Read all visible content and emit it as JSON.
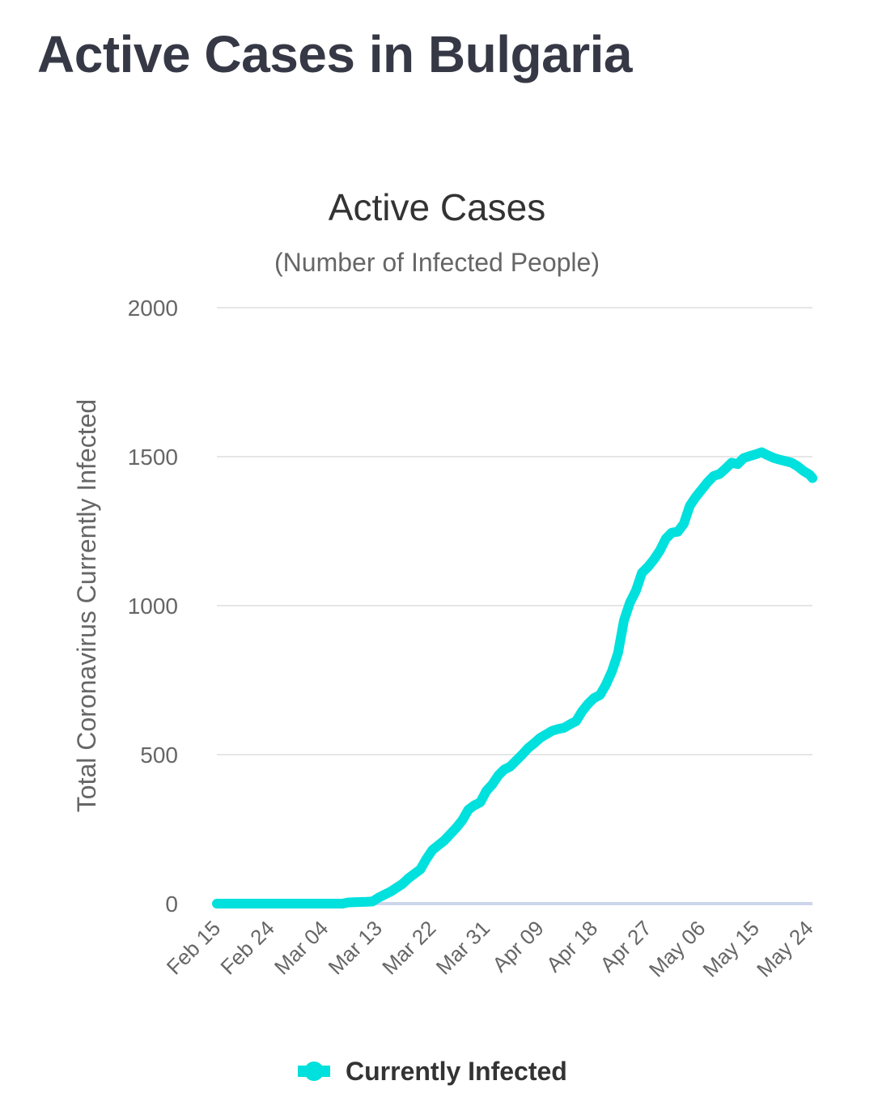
{
  "page": {
    "title": "Active Cases in Bulgaria"
  },
  "colors": {
    "series": "#00e0dd",
    "grid": "#e6e6e6",
    "baseline": "#ccd6eb"
  },
  "chart_data": {
    "type": "line",
    "title": "Active Cases",
    "subtitle": "(Number of Infected People)",
    "xlabel": "",
    "ylabel": "Total Coronavirus Currently Infected",
    "ylim": [
      0,
      2000
    ],
    "yticks": [
      0,
      500,
      1000,
      1500,
      2000
    ],
    "xlim": [
      "Feb 15",
      "May 25"
    ],
    "xtick_labels": [
      "Feb 15",
      "Feb 24",
      "Mar 04",
      "Mar 13",
      "Mar 22",
      "Mar 31",
      "Apr 09",
      "Apr 18",
      "Apr 27",
      "May 06",
      "May 15",
      "May 24"
    ],
    "grid": true,
    "legend": {
      "position": "bottom-center",
      "entries": [
        "Currently Infected"
      ]
    },
    "series": [
      {
        "name": "Currently Infected",
        "points": [
          {
            "day": 0,
            "date": "Feb 15",
            "value": 0
          },
          {
            "day": 21,
            "date": "Mar 07",
            "value": 0
          },
          {
            "day": 22,
            "date": "Mar 08",
            "value": 4
          },
          {
            "day": 25,
            "date": "Mar 11",
            "value": 6
          },
          {
            "day": 26,
            "date": "Mar 12",
            "value": 7
          },
          {
            "day": 27,
            "date": "Mar 13",
            "value": 20
          },
          {
            "day": 29,
            "date": "Mar 15",
            "value": 40
          },
          {
            "day": 31,
            "date": "Mar 17",
            "value": 66
          },
          {
            "day": 32,
            "date": "Mar 18",
            "value": 85
          },
          {
            "day": 34,
            "date": "Mar 20",
            "value": 115
          },
          {
            "day": 35,
            "date": "Mar 21",
            "value": 150
          },
          {
            "day": 36,
            "date": "Mar 22",
            "value": 180
          },
          {
            "day": 38,
            "date": "Mar 24",
            "value": 212
          },
          {
            "day": 40,
            "date": "Mar 26",
            "value": 255
          },
          {
            "day": 41,
            "date": "Mar 27",
            "value": 280
          },
          {
            "day": 42,
            "date": "Mar 28",
            "value": 315
          },
          {
            "day": 43,
            "date": "Mar 29",
            "value": 330
          },
          {
            "day": 44,
            "date": "Mar 30",
            "value": 340
          },
          {
            "day": 45,
            "date": "Mar 31",
            "value": 378
          },
          {
            "day": 46,
            "date": "Apr 01",
            "value": 400
          },
          {
            "day": 47,
            "date": "Apr 02",
            "value": 430
          },
          {
            "day": 48,
            "date": "Apr 03",
            "value": 450
          },
          {
            "day": 49,
            "date": "Apr 04",
            "value": 460
          },
          {
            "day": 50,
            "date": "Apr 05",
            "value": 480
          },
          {
            "day": 51,
            "date": "Apr 06",
            "value": 500
          },
          {
            "day": 52,
            "date": "Apr 07",
            "value": 522
          },
          {
            "day": 53,
            "date": "Apr 08",
            "value": 538
          },
          {
            "day": 54,
            "date": "Apr 09",
            "value": 556
          },
          {
            "day": 55,
            "date": "Apr 10",
            "value": 568
          },
          {
            "day": 56,
            "date": "Apr 11",
            "value": 580
          },
          {
            "day": 57,
            "date": "Apr 12",
            "value": 586
          },
          {
            "day": 58,
            "date": "Apr 13",
            "value": 590
          },
          {
            "day": 59,
            "date": "Apr 14",
            "value": 602
          },
          {
            "day": 60,
            "date": "Apr 15",
            "value": 612
          },
          {
            "day": 61,
            "date": "Apr 16",
            "value": 645
          },
          {
            "day": 62,
            "date": "Apr 17",
            "value": 670
          },
          {
            "day": 63,
            "date": "Apr 18",
            "value": 690
          },
          {
            "day": 64,
            "date": "Apr 19",
            "value": 700
          },
          {
            "day": 65,
            "date": "Apr 20",
            "value": 735
          },
          {
            "day": 66,
            "date": "Apr 21",
            "value": 780
          },
          {
            "day": 67,
            "date": "Apr 22",
            "value": 840
          },
          {
            "day": 68,
            "date": "Apr 23",
            "value": 950
          },
          {
            "day": 69,
            "date": "Apr 24",
            "value": 1010
          },
          {
            "day": 70,
            "date": "Apr 25",
            "value": 1050
          },
          {
            "day": 71,
            "date": "Apr 26",
            "value": 1110
          },
          {
            "day": 72,
            "date": "Apr 27",
            "value": 1130
          },
          {
            "day": 73,
            "date": "Apr 28",
            "value": 1155
          },
          {
            "day": 74,
            "date": "Apr 29",
            "value": 1185
          },
          {
            "day": 75,
            "date": "Apr 30",
            "value": 1225
          },
          {
            "day": 76,
            "date": "May 01",
            "value": 1245
          },
          {
            "day": 77,
            "date": "May 02",
            "value": 1248
          },
          {
            "day": 78,
            "date": "May 03",
            "value": 1275
          },
          {
            "day": 79,
            "date": "May 04",
            "value": 1335
          },
          {
            "day": 80,
            "date": "May 05",
            "value": 1365
          },
          {
            "day": 81,
            "date": "May 06",
            "value": 1390
          },
          {
            "day": 82,
            "date": "May 07",
            "value": 1415
          },
          {
            "day": 83,
            "date": "May 08",
            "value": 1435
          },
          {
            "day": 84,
            "date": "May 09",
            "value": 1442
          },
          {
            "day": 85,
            "date": "May 10",
            "value": 1460
          },
          {
            "day": 86,
            "date": "May 11",
            "value": 1480
          },
          {
            "day": 87,
            "date": "May 12",
            "value": 1475
          },
          {
            "day": 88,
            "date": "May 13",
            "value": 1495
          },
          {
            "day": 89,
            "date": "May 14",
            "value": 1502
          },
          {
            "day": 90,
            "date": "May 15",
            "value": 1508
          },
          {
            "day": 91,
            "date": "May 16",
            "value": 1515
          },
          {
            "day": 92,
            "date": "May 17",
            "value": 1505
          },
          {
            "day": 93,
            "date": "May 18",
            "value": 1496
          },
          {
            "day": 94,
            "date": "May 19",
            "value": 1490
          },
          {
            "day": 95,
            "date": "May 20",
            "value": 1485
          },
          {
            "day": 96,
            "date": "May 21",
            "value": 1480
          },
          {
            "day": 97,
            "date": "May 22",
            "value": 1468
          },
          {
            "day": 98,
            "date": "May 23",
            "value": 1452
          },
          {
            "day": 99,
            "date": "May 24",
            "value": 1440
          }
        ]
      }
    ]
  }
}
